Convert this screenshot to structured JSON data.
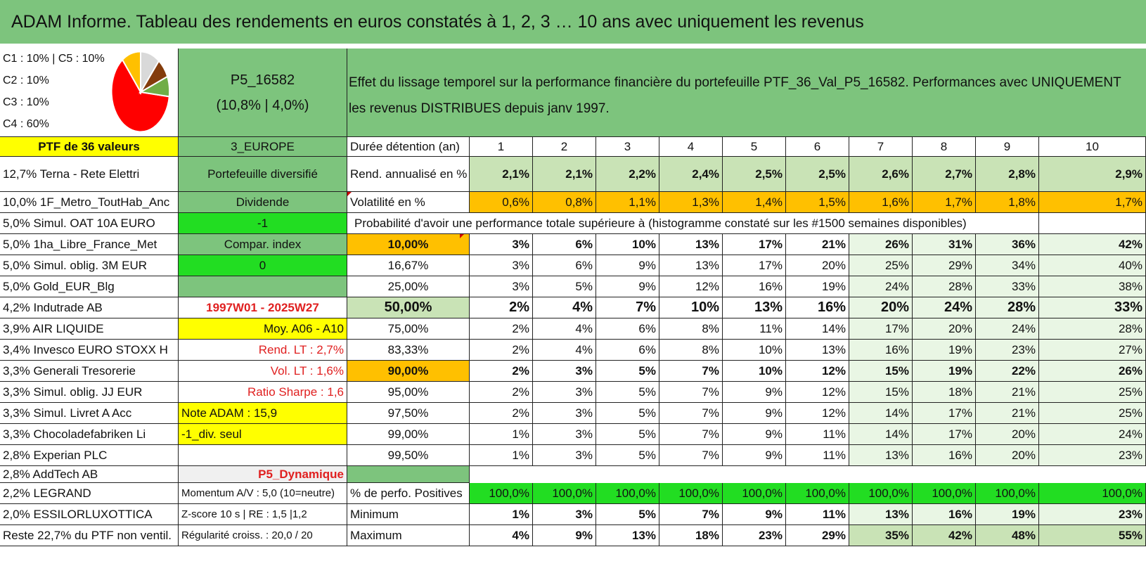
{
  "title": "ADAM Informe. Tableau des rendements en euros constatés à 1, 2, 3 … 10 ans avec uniquement les revenus",
  "legend": [
    "C1 : 10% | C5 : 10%",
    "C2 : 10%",
    "C3 : 10%",
    "C4 : 60%"
  ],
  "pie_colors": {
    "c4": "#ff0000",
    "c3": "#70ad47",
    "c2": "#843c0c",
    "c1": "#d9d9d9",
    "c5": "#ffc000"
  },
  "portfolio": {
    "id": "P5_16582",
    "stats": "(10,8% | 4,0%)"
  },
  "description": "Effet du lissage temporel sur la performance financière du portefeuille PTF_36_Val_P5_16582. Performances avec UNIQUEMENT les revenus DISTRIBUES depuis janv 1997.",
  "header_left": "PTF de 36 valeurs",
  "header_mid": "3_EUROPE",
  "duration_label": "Durée détention (an)",
  "years": [
    "1",
    "2",
    "3",
    "4",
    "5",
    "6",
    "7",
    "8",
    "9",
    "10"
  ],
  "holdings": [
    "12,7% Terna - Rete Elettri",
    "10,0% 1F_Metro_ToutHab_Anc",
    "5,0% Simul. OAT 10A EURO",
    "5,0% 1ha_Libre_France_Met",
    "5,0% Simul. oblig. 3M EUR",
    "5,0% Gold_EUR_Blg",
    "4,2% Indutrade AB",
    "3,9% AIR LIQUIDE",
    "3,4% Invesco EURO STOXX H",
    "3,3% Generali Tresorerie",
    "3,3% Simul. oblig. JJ EUR",
    "3,3% Simul. Livret A Acc",
    "3,3% Chocoladefabriken Li",
    "2,8% Experian PLC",
    "2,8% AddTech AB",
    "2,2% LEGRAND",
    "2,0% ESSILORLUXOTTICA",
    "Reste 22,7% du PTF non ventil."
  ],
  "info": [
    "Portefeuille diversifié",
    "Dividende",
    "-1",
    "Compar. index",
    "0",
    "",
    "1997W01 - 2025W27",
    "Moy. A06 - A10",
    "Rend. LT : 2,7%",
    "Vol. LT : 1,6%",
    "Ratio Sharpe : 1,6",
    "Note ADAM : 15,9",
    "-1_div. seul",
    "",
    "P5_Dynamique",
    "Momentum A/V : 5,0 (10=neutre)",
    "Z-score 10 s | RE : 1,5 |1,2",
    "Régularité croiss. : 20,0 / 20"
  ],
  "rend": {
    "label": "Rend. annualisé en %",
    "values": [
      "2,1%",
      "2,1%",
      "2,2%",
      "2,4%",
      "2,5%",
      "2,5%",
      "2,6%",
      "2,7%",
      "2,8%",
      "2,9%"
    ]
  },
  "vol": {
    "label": "Volatilité en %",
    "values": [
      "0,6%",
      "0,8%",
      "1,1%",
      "1,3%",
      "1,4%",
      "1,5%",
      "1,6%",
      "1,7%",
      "1,8%",
      "1,7%"
    ]
  },
  "proba_title": "Probabilité d'avoir une performance totale supérieure à (histogramme constaté sur les #1500 semaines disponibles)",
  "prob_rows": [
    {
      "p": "10,00%",
      "v": [
        "3%",
        "6%",
        "10%",
        "13%",
        "17%",
        "21%",
        "26%",
        "31%",
        "36%",
        "42%"
      ]
    },
    {
      "p": "16,67%",
      "v": [
        "3%",
        "6%",
        "9%",
        "13%",
        "17%",
        "20%",
        "25%",
        "29%",
        "34%",
        "40%"
      ]
    },
    {
      "p": "25,00%",
      "v": [
        "3%",
        "5%",
        "9%",
        "12%",
        "16%",
        "19%",
        "24%",
        "28%",
        "33%",
        "38%"
      ]
    },
    {
      "p": "50,00%",
      "v": [
        "2%",
        "4%",
        "7%",
        "10%",
        "13%",
        "16%",
        "20%",
        "24%",
        "28%",
        "33%"
      ]
    },
    {
      "p": "75,00%",
      "v": [
        "2%",
        "4%",
        "6%",
        "8%",
        "11%",
        "14%",
        "17%",
        "20%",
        "24%",
        "28%"
      ]
    },
    {
      "p": "83,33%",
      "v": [
        "2%",
        "4%",
        "6%",
        "8%",
        "10%",
        "13%",
        "16%",
        "19%",
        "23%",
        "27%"
      ]
    },
    {
      "p": "90,00%",
      "v": [
        "2%",
        "3%",
        "5%",
        "7%",
        "10%",
        "12%",
        "15%",
        "19%",
        "22%",
        "26%"
      ]
    },
    {
      "p": "95,00%",
      "v": [
        "2%",
        "3%",
        "5%",
        "7%",
        "9%",
        "12%",
        "15%",
        "18%",
        "21%",
        "25%"
      ]
    },
    {
      "p": "97,50%",
      "v": [
        "2%",
        "3%",
        "5%",
        "7%",
        "9%",
        "12%",
        "14%",
        "17%",
        "21%",
        "25%"
      ]
    },
    {
      "p": "99,00%",
      "v": [
        "1%",
        "3%",
        "5%",
        "7%",
        "9%",
        "11%",
        "14%",
        "17%",
        "20%",
        "24%"
      ]
    },
    {
      "p": "99,50%",
      "v": [
        "1%",
        "3%",
        "5%",
        "7%",
        "9%",
        "11%",
        "13%",
        "16%",
        "20%",
        "23%"
      ]
    }
  ],
  "pos": {
    "label": "% de perfo. Positives",
    "values": [
      "100,0%",
      "100,0%",
      "100,0%",
      "100,0%",
      "100,0%",
      "100,0%",
      "100,0%",
      "100,0%",
      "100,0%",
      "100,0%"
    ]
  },
  "min": {
    "label": "Minimum",
    "values": [
      "1%",
      "3%",
      "5%",
      "7%",
      "9%",
      "11%",
      "13%",
      "16%",
      "19%",
      "23%"
    ]
  },
  "max": {
    "label": "Maximum",
    "values": [
      "4%",
      "9%",
      "13%",
      "18%",
      "23%",
      "29%",
      "35%",
      "42%",
      "48%",
      "55%"
    ]
  }
}
